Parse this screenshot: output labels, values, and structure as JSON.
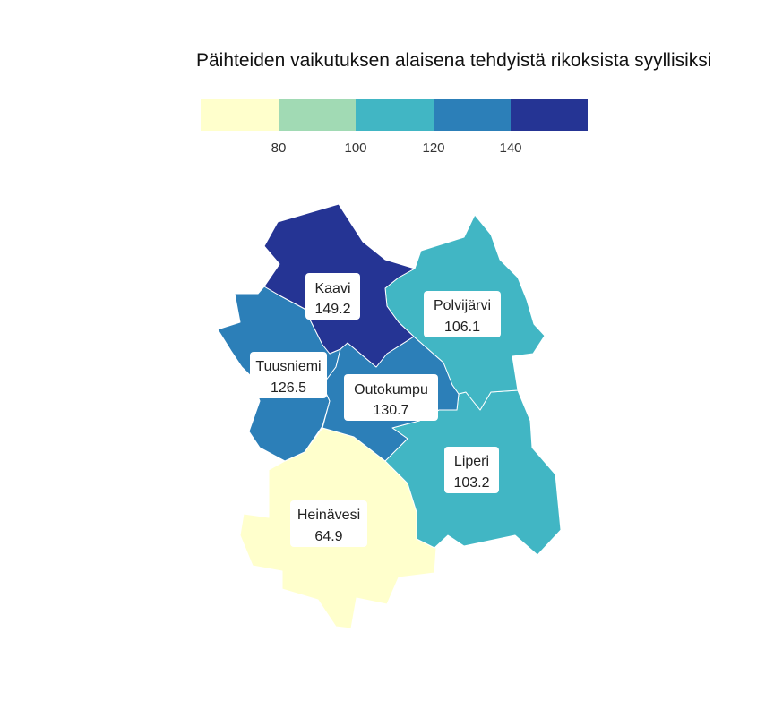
{
  "title": "Päihteiden vaikutuksen alaisena tehdyistä rikoksista syyllisiksi",
  "legend": {
    "breaks": [
      80,
      100,
      120,
      140
    ],
    "tick_labels": [
      "80",
      "100",
      "120",
      "140"
    ],
    "colors": [
      "#ffffcc",
      "#a1dab4",
      "#41b6c4",
      "#2c7fb8",
      "#253494"
    ]
  },
  "regions": [
    {
      "id": "kaavi",
      "name": "Kaavi",
      "value": 149.2,
      "value_label": "149.2",
      "color": "#253494"
    },
    {
      "id": "polvijarvi",
      "name": "Polvijärvi",
      "value": 106.1,
      "value_label": "106.1",
      "color": "#41b6c4"
    },
    {
      "id": "tuusniemi",
      "name": "Tuusniemi",
      "value": 126.5,
      "value_label": "126.5",
      "color": "#2c7fb8"
    },
    {
      "id": "outokumpu",
      "name": "Outokumpu",
      "value": 130.7,
      "value_label": "130.7",
      "color": "#2c7fb8"
    },
    {
      "id": "liperi",
      "name": "Liperi",
      "value": 103.2,
      "value_label": "103.2",
      "color": "#41b6c4"
    },
    {
      "id": "heinavesi",
      "name": "Heinävesi",
      "value": 64.9,
      "value_label": "64.9",
      "color": "#ffffcc"
    }
  ]
}
